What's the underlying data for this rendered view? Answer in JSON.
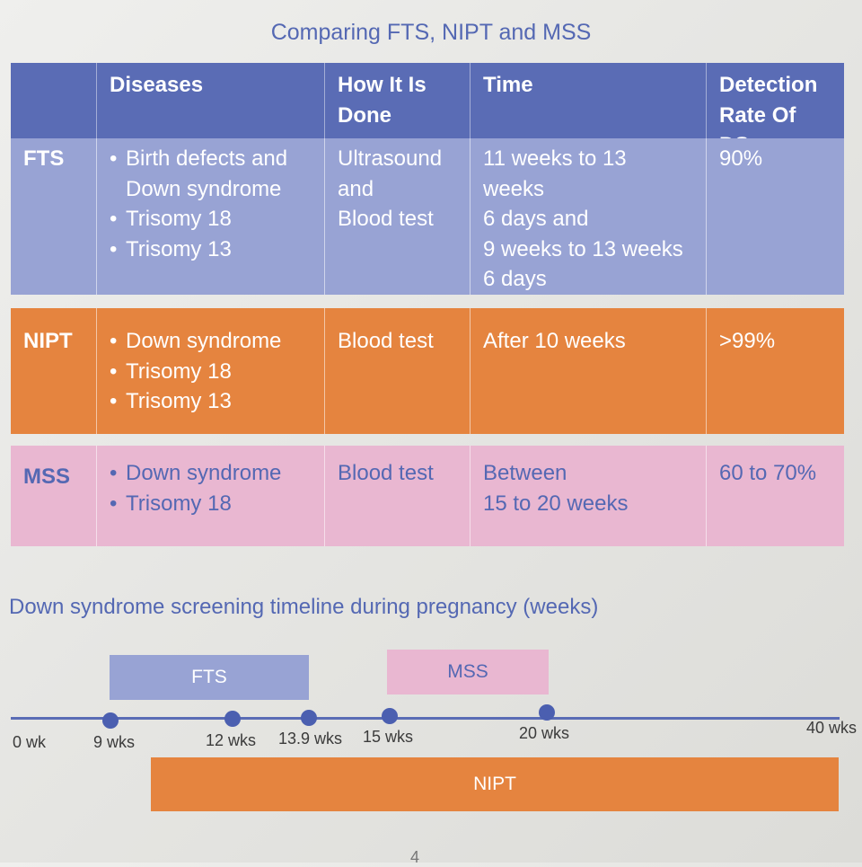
{
  "title": "Comparing FTS, NIPT and MSS",
  "table": {
    "headers": [
      "",
      "Diseases",
      "How It Is Done",
      "Time",
      "Detection Rate Of DS"
    ],
    "rows": [
      {
        "name": "FTS",
        "diseases": [
          "Birth defects and Down syndrome",
          "Trisomy 18",
          "Trisomy 13"
        ],
        "how": [
          "Ultrasound",
          "and",
          "Blood test"
        ],
        "time": [
          "11 weeks to 13 weeks",
          "6 days and",
          "9 weeks to 13 weeks",
          "6 days"
        ],
        "rate": "90%"
      },
      {
        "name": "NIPT",
        "diseases": [
          "Down syndrome",
          "Trisomy 18",
          "Trisomy 13"
        ],
        "how": [
          "Blood test"
        ],
        "time": [
          "After 10 weeks"
        ],
        "rate": ">99%"
      },
      {
        "name": "MSS",
        "diseases": [
          "Down syndrome",
          "Trisomy 18"
        ],
        "how": [
          "Blood test"
        ],
        "time": [
          "Between",
          "15 to 20 weeks"
        ],
        "rate": "60 to 70%"
      }
    ]
  },
  "timeline": {
    "title": "Down syndrome screening timeline during pregnancy (weeks)",
    "axis_labels": [
      "0 wk",
      "9 wks",
      "12 wks",
      "13.9 wks",
      "15 wks",
      "20 wks",
      "40 wks"
    ],
    "bars": {
      "fts": "FTS",
      "mss": "MSS",
      "nipt": "NIPT"
    }
  },
  "page_number": "4",
  "colors": {
    "accent_blue": "#5a6cb5",
    "fts": "#98a3d4",
    "nipt": "#e5843f",
    "mss": "#e9b7d1"
  }
}
